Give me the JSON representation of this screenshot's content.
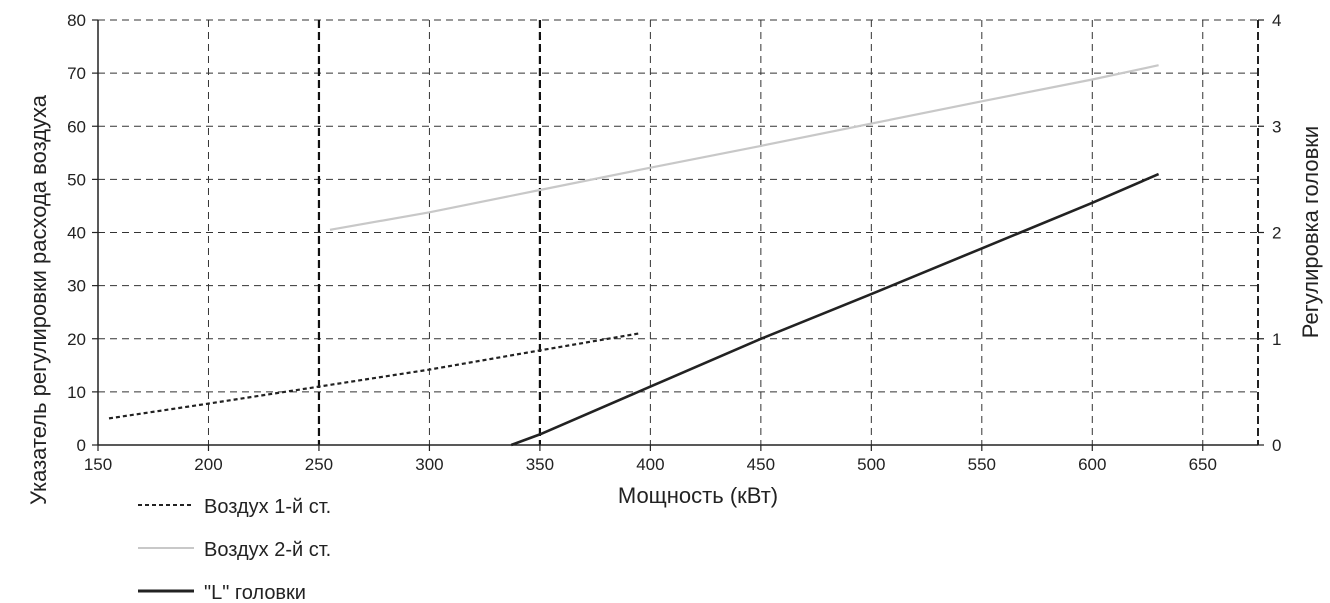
{
  "chart_data": {
    "type": "line",
    "xlabel": "Мощность (кВт)",
    "ylabel": "Указатель регулировки расхода воздуха",
    "y2label": "Регулировка головки",
    "xlim": [
      150,
      675
    ],
    "ylim": [
      0,
      80
    ],
    "y2lim": [
      0,
      4
    ],
    "xticks": [
      "150",
      "200",
      "250",
      "300",
      "350",
      "400",
      "450",
      "500",
      "550",
      "600",
      "650"
    ],
    "yticks": [
      "0",
      "10",
      "20",
      "30",
      "40",
      "50",
      "60",
      "70",
      "80"
    ],
    "y2ticks": [
      "0",
      "1",
      "2",
      "3",
      "4"
    ],
    "grid": true,
    "grid_style": "dashed",
    "legend_position": "bottom-left",
    "series": [
      {
        "name": "Воздух 1-й ст.",
        "axis": "left",
        "style": "dotted",
        "color": "#222222",
        "x": [
          155,
          200,
          250,
          300,
          350,
          395
        ],
        "y": [
          5,
          7.8,
          11,
          14.2,
          17.8,
          21
        ]
      },
      {
        "name": "Воздух 2-й ст.",
        "axis": "left",
        "style": "solid",
        "color": "#c8c8c8",
        "x": [
          255,
          300,
          350,
          400,
          450,
          500,
          550,
          600,
          630
        ],
        "y": [
          40.5,
          43.8,
          48,
          52.2,
          56.3,
          60.5,
          64.7,
          68.8,
          71.5
        ]
      },
      {
        "name": "\"L\" головки",
        "axis": "right",
        "style": "solid",
        "color": "#222222",
        "x": [
          337,
          350,
          400,
          450,
          500,
          550,
          600,
          630
        ],
        "y": [
          0,
          0.1,
          0.55,
          1.0,
          1.42,
          1.85,
          2.28,
          2.55
        ]
      }
    ]
  }
}
